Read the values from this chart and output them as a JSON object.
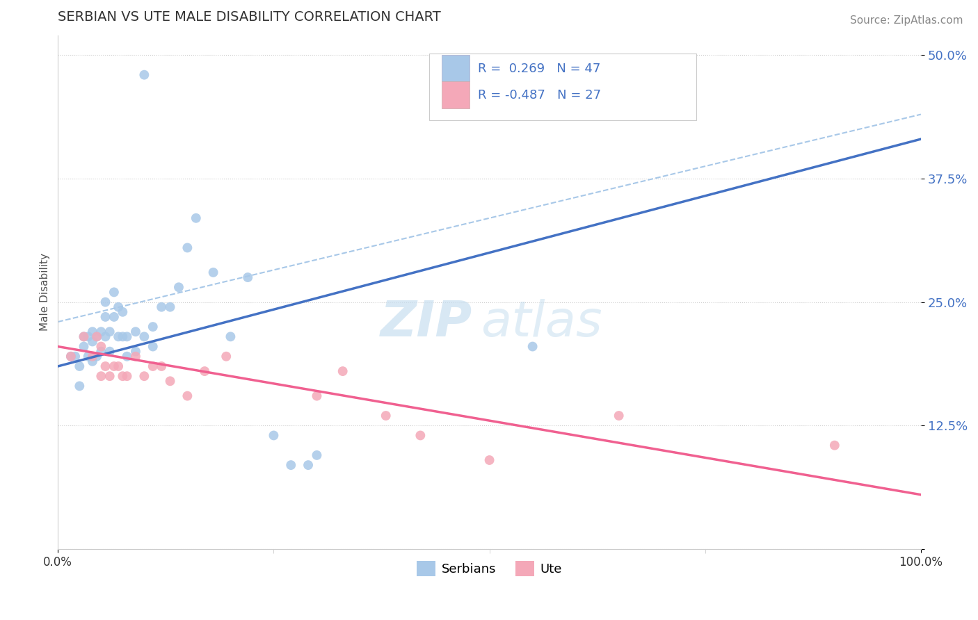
{
  "title": "SERBIAN VS UTE MALE DISABILITY CORRELATION CHART",
  "source": "Source: ZipAtlas.com",
  "ylabel": "Male Disability",
  "xlim": [
    0.0,
    1.0
  ],
  "ylim": [
    0.0,
    0.52
  ],
  "yticks": [
    0.0,
    0.125,
    0.25,
    0.375,
    0.5
  ],
  "ytick_labels": [
    "",
    "12.5%",
    "25.0%",
    "37.5%",
    "50.0%"
  ],
  "xtick_vals": [
    0.0,
    1.0
  ],
  "xtick_labels": [
    "0.0%",
    "100.0%"
  ],
  "serbian_color": "#a8c8e8",
  "ute_color": "#f4a8b8",
  "serbian_line_color": "#4472c4",
  "ute_line_color": "#f06090",
  "dashed_line_color": "#a8c8e8",
  "grid_color": "#cccccc",
  "R_serbian": 0.269,
  "N_serbian": 47,
  "R_ute": -0.487,
  "N_ute": 27,
  "legend_label_serbian": "Serbians",
  "legend_label_ute": "Ute",
  "watermark_text": "ZIPatlas",
  "watermark_color": "#c8dff0",
  "title_fontsize": 14,
  "tick_label_color": "#4472c4",
  "source_color": "#888888",
  "serbian_x": [
    0.015,
    0.02,
    0.025,
    0.025,
    0.03,
    0.03,
    0.035,
    0.035,
    0.04,
    0.04,
    0.04,
    0.045,
    0.045,
    0.05,
    0.05,
    0.055,
    0.055,
    0.055,
    0.06,
    0.06,
    0.065,
    0.065,
    0.07,
    0.07,
    0.075,
    0.075,
    0.08,
    0.08,
    0.09,
    0.09,
    0.1,
    0.11,
    0.11,
    0.12,
    0.13,
    0.14,
    0.15,
    0.16,
    0.18,
    0.2,
    0.22,
    0.25,
    0.27,
    0.29,
    0.3,
    0.55,
    0.1
  ],
  "serbian_y": [
    0.195,
    0.195,
    0.185,
    0.165,
    0.215,
    0.205,
    0.215,
    0.195,
    0.22,
    0.21,
    0.19,
    0.215,
    0.195,
    0.22,
    0.2,
    0.25,
    0.235,
    0.215,
    0.22,
    0.2,
    0.26,
    0.235,
    0.245,
    0.215,
    0.24,
    0.215,
    0.215,
    0.195,
    0.22,
    0.2,
    0.215,
    0.225,
    0.205,
    0.245,
    0.245,
    0.265,
    0.305,
    0.335,
    0.28,
    0.215,
    0.275,
    0.115,
    0.085,
    0.085,
    0.095,
    0.205,
    0.48
  ],
  "ute_x": [
    0.015,
    0.03,
    0.04,
    0.045,
    0.05,
    0.05,
    0.055,
    0.06,
    0.065,
    0.07,
    0.075,
    0.08,
    0.09,
    0.1,
    0.11,
    0.12,
    0.13,
    0.15,
    0.17,
    0.195,
    0.3,
    0.33,
    0.38,
    0.42,
    0.5,
    0.65,
    0.9
  ],
  "ute_y": [
    0.195,
    0.215,
    0.195,
    0.215,
    0.205,
    0.175,
    0.185,
    0.175,
    0.185,
    0.185,
    0.175,
    0.175,
    0.195,
    0.175,
    0.185,
    0.185,
    0.17,
    0.155,
    0.18,
    0.195,
    0.155,
    0.18,
    0.135,
    0.115,
    0.09,
    0.135,
    0.105
  ],
  "serbian_line_x0": 0.0,
  "serbian_line_y0": 0.185,
  "serbian_line_x1": 1.0,
  "serbian_line_y1": 0.415,
  "ute_line_x0": 0.0,
  "ute_line_y0": 0.205,
  "ute_line_x1": 1.0,
  "ute_line_y1": 0.055,
  "dash_line_x0": 0.0,
  "dash_line_y0": 0.23,
  "dash_line_x1": 1.0,
  "dash_line_y1": 0.44
}
